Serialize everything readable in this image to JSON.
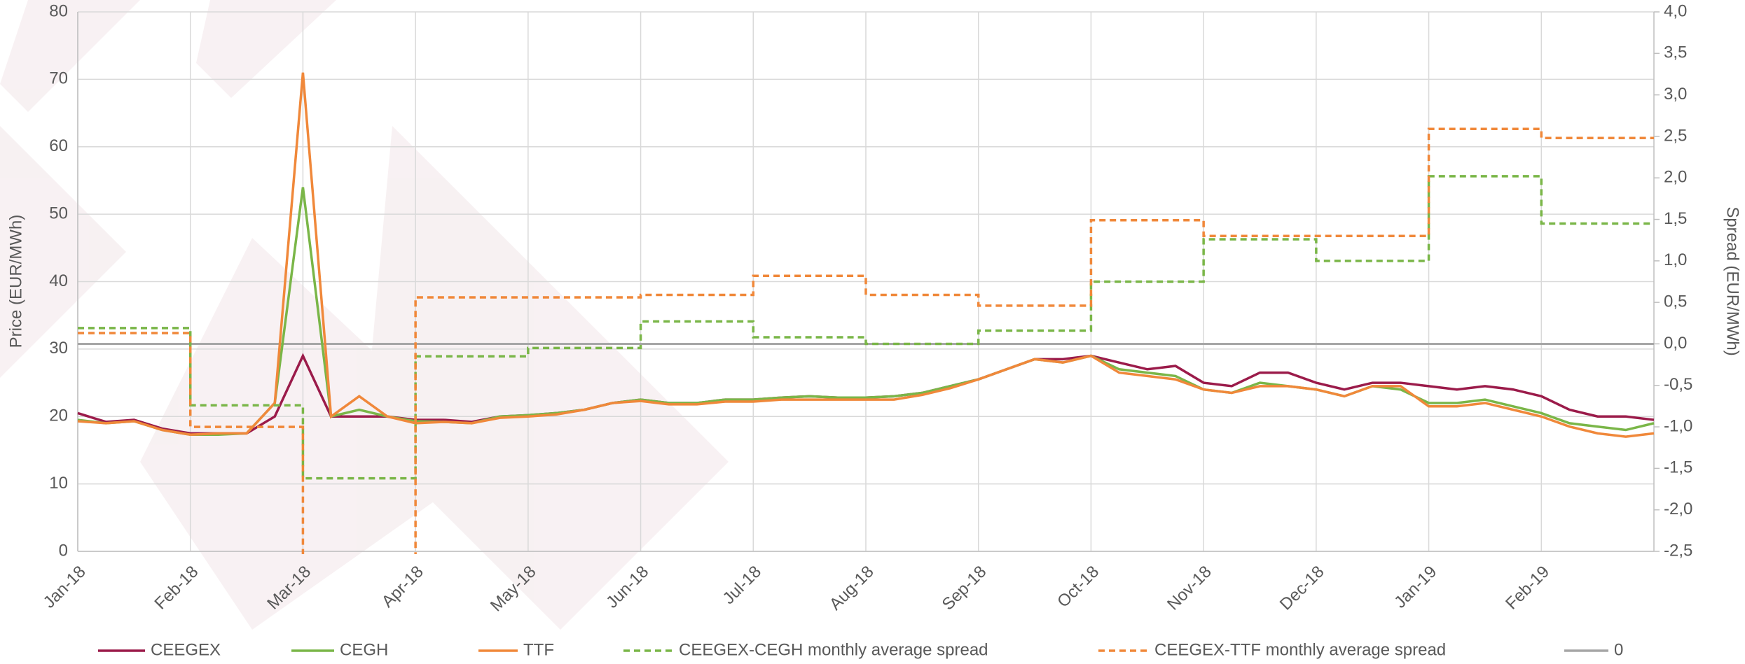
{
  "chart_data": {
    "type": "line",
    "ylabel": "Price (EUR/MWh)",
    "y2label": "Spread (EUR/MWh)",
    "categories": [
      "Jan-18",
      null,
      null,
      null,
      "Feb-18",
      null,
      null,
      null,
      "Mar-18",
      null,
      null,
      null,
      "Apr-18",
      null,
      null,
      null,
      "May-18",
      null,
      null,
      null,
      "Jun-18",
      null,
      null,
      null,
      "Jul-18",
      null,
      null,
      null,
      "Aug-18",
      null,
      null,
      null,
      "Sep-18",
      null,
      null,
      null,
      "Oct-18",
      null,
      null,
      null,
      "Nov-18",
      null,
      null,
      null,
      "Dec-18",
      null,
      null,
      null,
      "Jan-19",
      null,
      null,
      null,
      "Feb-19",
      null,
      null,
      null,
      null
    ],
    "series": [
      {
        "name": "CEEGEX",
        "color": "#9b1b4a",
        "dash": false,
        "values": [
          20.5,
          19.2,
          19.5,
          18.2,
          17.5,
          17.5,
          17.5,
          20,
          29,
          20,
          20,
          20,
          19.5,
          19.5,
          19.2,
          20,
          20.2,
          20.5,
          21,
          22,
          22.5,
          22,
          22,
          22.5,
          22.5,
          22.8,
          23,
          22.8,
          22.8,
          23,
          23.5,
          24.5,
          25.5,
          27,
          28.5,
          28.5,
          29,
          28,
          27,
          27.5,
          25,
          24.5,
          26.5,
          26.5,
          25,
          24,
          25,
          25,
          24.5,
          24,
          24.5,
          24,
          23,
          21,
          20,
          20,
          19.5
        ]
      },
      {
        "name": "CEGH",
        "color": "#7ab648",
        "dash": false,
        "values": [
          19.5,
          19,
          19.3,
          18,
          17.3,
          17.3,
          17.5,
          22,
          54,
          20,
          21,
          20,
          19.3,
          19.2,
          19,
          20,
          20.2,
          20.5,
          21,
          22,
          22.5,
          22,
          22,
          22.5,
          22.5,
          22.8,
          23,
          22.8,
          22.8,
          23,
          23.5,
          24.5,
          25.5,
          27,
          28.5,
          28,
          29,
          27,
          26.5,
          26,
          24,
          23.5,
          25,
          24.5,
          24,
          23,
          24.5,
          24,
          22,
          22,
          22.5,
          21.5,
          20.5,
          19,
          18.5,
          18,
          19
        ]
      },
      {
        "name": "TTF",
        "color": "#f0883a",
        "dash": false,
        "values": [
          19.3,
          19,
          19.3,
          18,
          17.3,
          17.5,
          17.5,
          22,
          71,
          20,
          23,
          20,
          19,
          19.2,
          19,
          19.8,
          20,
          20.3,
          21,
          22,
          22.3,
          21.8,
          21.8,
          22.2,
          22.2,
          22.5,
          22.5,
          22.5,
          22.5,
          22.5,
          23.2,
          24.2,
          25.5,
          27,
          28.5,
          28,
          29,
          26.5,
          26,
          25.5,
          24,
          23.5,
          24.5,
          24.5,
          24,
          23,
          24.5,
          24.5,
          21.5,
          21.5,
          22,
          21,
          20,
          18.5,
          17.5,
          17,
          17.5
        ]
      },
      {
        "name": "CEEGEX-CEGH monthly average spread",
        "color": "#7ab648",
        "dash": true,
        "axis": "y2",
        "values": [
          0.19,
          0.19,
          0.19,
          0.19,
          -0.74,
          -0.74,
          -0.74,
          -0.74,
          -1.62,
          -1.62,
          -1.62,
          -1.62,
          -0.15,
          -0.15,
          -0.15,
          -0.15,
          -0.05,
          -0.05,
          -0.05,
          -0.05,
          0.27,
          0.27,
          0.27,
          0.27,
          0.08,
          0.08,
          0.08,
          0.08,
          0,
          0,
          0,
          0,
          0.16,
          0.16,
          0.16,
          0.16,
          0.75,
          0.75,
          0.75,
          0.75,
          1.26,
          1.26,
          1.26,
          1.26,
          1,
          1,
          1,
          1,
          2.02,
          2.02,
          2.02,
          2.02,
          1.45,
          1.45,
          1.45,
          1.45,
          1.45
        ]
      },
      {
        "name": "CEEGEX-TTF monthly average spread",
        "color": "#f0883a",
        "dash": true,
        "axis": "y2",
        "values": [
          0.13,
          0.13,
          0.13,
          0.13,
          -1,
          -1,
          -1,
          -1,
          -2.8,
          -2.8,
          -2.8,
          -2.8,
          0.56,
          0.56,
          0.56,
          0.56,
          0.56,
          0.56,
          0.56,
          0.56,
          0.59,
          0.59,
          0.59,
          0.59,
          0.82,
          0.82,
          0.82,
          0.82,
          0.59,
          0.59,
          0.59,
          0.59,
          0.46,
          0.46,
          0.46,
          0.46,
          1.49,
          1.49,
          1.49,
          1.49,
          1.3,
          1.3,
          1.3,
          1.3,
          1.3,
          1.3,
          1.3,
          1.3,
          2.59,
          2.59,
          2.59,
          2.59,
          2.48,
          2.48,
          2.48,
          2.48,
          2.48
        ]
      }
    ],
    "reference_line": {
      "name": "0",
      "value": 0,
      "axis": "y2",
      "color": "#a6a6a6"
    },
    "ylim": [
      0,
      80
    ],
    "yticks": [
      0,
      10,
      20,
      30,
      40,
      50,
      60,
      70,
      80
    ],
    "y2lim": [
      -2.5,
      4
    ],
    "y2ticks": [
      {
        "value": -2.5,
        "label": "-2,5"
      },
      {
        "value": -2,
        "label": "-2,0"
      },
      {
        "value": -1.5,
        "label": "-1,5"
      },
      {
        "value": -1,
        "label": "-1,0"
      },
      {
        "value": -0.5,
        "label": "-0,5"
      },
      {
        "value": 0,
        "label": "0,0"
      },
      {
        "value": 0.5,
        "label": "0,5"
      },
      {
        "value": 1,
        "label": "1,0"
      },
      {
        "value": 1.5,
        "label": "1,5"
      },
      {
        "value": 2,
        "label": "2,0"
      },
      {
        "value": 2.5,
        "label": "2,5"
      },
      {
        "value": 3,
        "label": "3,0"
      },
      {
        "value": 3.5,
        "label": "3,5"
      },
      {
        "value": 4,
        "label": "4,0"
      }
    ],
    "grid": true,
    "legend": "bottom"
  }
}
